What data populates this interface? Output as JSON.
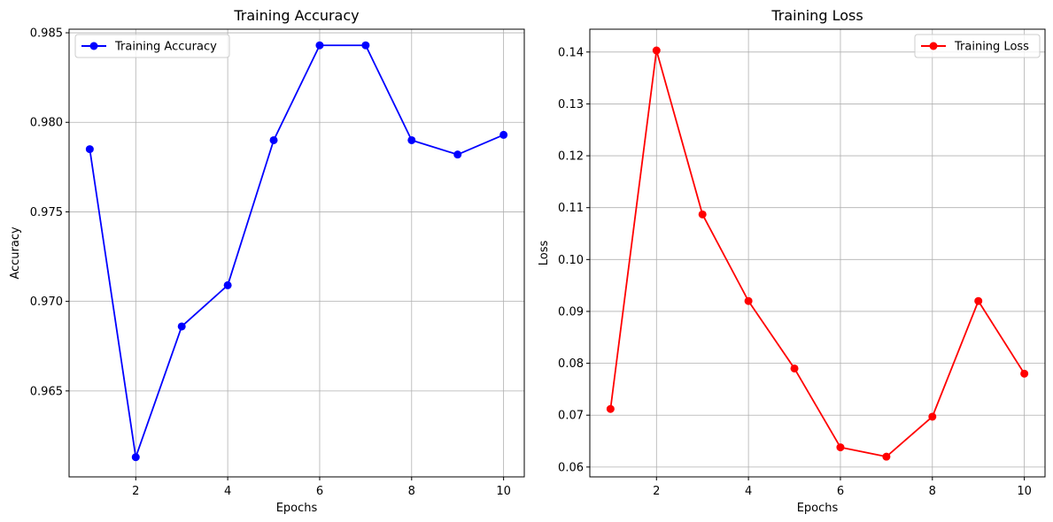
{
  "chart_data": [
    {
      "type": "line",
      "title": "Training Accuracy",
      "xlabel": "Epochs",
      "ylabel": "Accuracy",
      "xlim": [
        0.55,
        10.45
      ],
      "ylim": [
        0.9602,
        0.9852
      ],
      "xticks": [
        2,
        4,
        6,
        8,
        10
      ],
      "yticks": [
        0.965,
        0.97,
        0.975,
        0.98,
        0.985
      ],
      "ytick_labels": [
        "0.965",
        "0.970",
        "0.975",
        "0.980",
        "0.985"
      ],
      "grid": true,
      "legend_position": "top-left",
      "series": [
        {
          "name": "Training Accuracy",
          "color": "#0000ff",
          "marker": "circle",
          "x": [
            1,
            2,
            3,
            4,
            5,
            6,
            7,
            8,
            9,
            10
          ],
          "y": [
            0.9785,
            0.9613,
            0.9686,
            0.9709,
            0.979,
            0.9843,
            0.9843,
            0.979,
            0.9782,
            0.9793
          ]
        }
      ]
    },
    {
      "type": "line",
      "title": "Training Loss",
      "xlabel": "Epochs",
      "ylabel": "Loss",
      "xlim": [
        0.55,
        10.45
      ],
      "ylim": [
        0.0581,
        0.1444
      ],
      "xticks": [
        2,
        4,
        6,
        8,
        10
      ],
      "yticks": [
        0.06,
        0.07,
        0.08,
        0.09,
        0.1,
        0.11,
        0.12,
        0.13,
        0.14
      ],
      "ytick_labels": [
        "0.06",
        "0.07",
        "0.08",
        "0.09",
        "0.10",
        "0.11",
        "0.12",
        "0.13",
        "0.14"
      ],
      "grid": true,
      "legend_position": "top-right",
      "series": [
        {
          "name": "Training Loss",
          "color": "#ff0000",
          "marker": "circle",
          "x": [
            1,
            2,
            3,
            4,
            5,
            6,
            7,
            8,
            9,
            10
          ],
          "y": [
            0.0712,
            0.1403,
            0.1087,
            0.092,
            0.079,
            0.0638,
            0.062,
            0.0697,
            0.092,
            0.078
          ]
        }
      ]
    }
  ]
}
